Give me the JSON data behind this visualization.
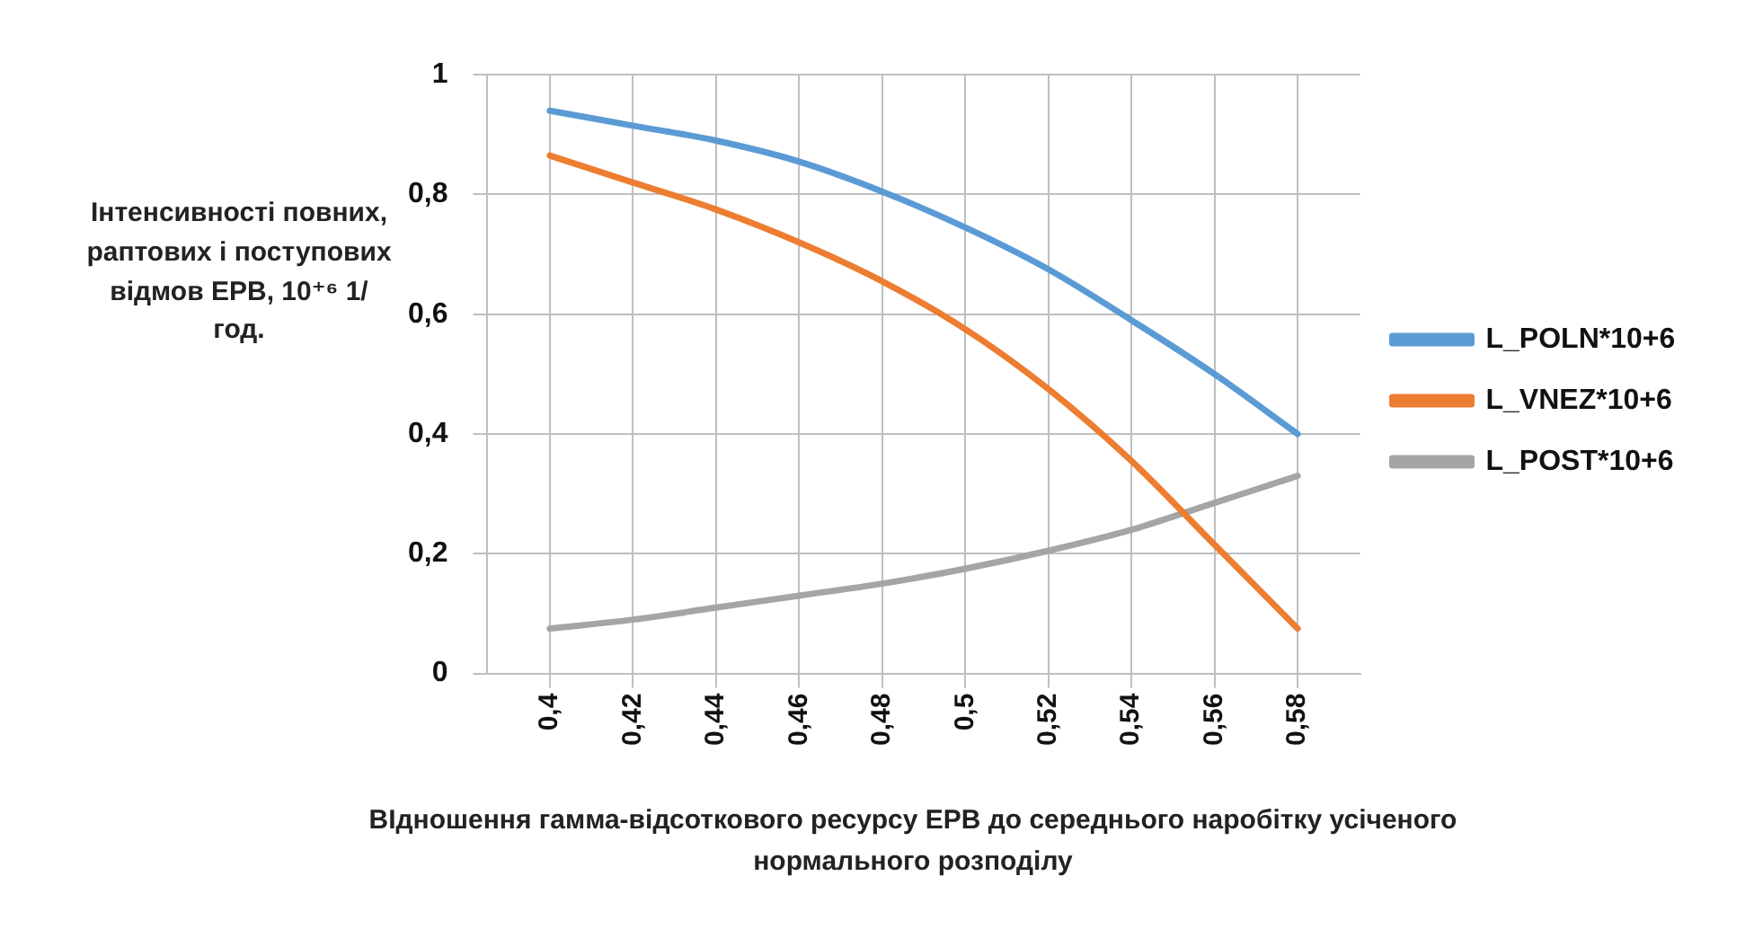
{
  "chart_data": {
    "type": "line",
    "xlabel": "ВІдношення гамма-відсоткового  ресурсу ЕРВ до середнього наробітку усіченого нормального розподілу",
    "ylabel": "Інтенсивності повних, раптових і поступових відмов ЕРВ, 10⁺⁶ 1/год.",
    "x": [
      0.4,
      0.42,
      0.44,
      0.46,
      0.48,
      0.5,
      0.52,
      0.54,
      0.56,
      0.58
    ],
    "series": [
      {
        "name": "L_POLN*10+6",
        "color": "#5b9bd5",
        "values": [
          0.94,
          0.915,
          0.89,
          0.855,
          0.805,
          0.745,
          0.675,
          0.59,
          0.5,
          0.4
        ]
      },
      {
        "name": "L_VNEZ*10+6",
        "color": "#ed7d31",
        "values": [
          0.865,
          0.82,
          0.775,
          0.72,
          0.655,
          0.575,
          0.475,
          0.355,
          0.215,
          0.075
        ]
      },
      {
        "name": "L_POST*10+6",
        "color": "#a5a5a5",
        "values": [
          0.075,
          0.09,
          0.11,
          0.13,
          0.15,
          0.175,
          0.205,
          0.24,
          0.285,
          0.33
        ]
      }
    ],
    "xlim": [
      0.385,
      0.595
    ],
    "xticks": [
      {
        "value": 0.4,
        "label": "0,4"
      },
      {
        "value": 0.42,
        "label": "0,42"
      },
      {
        "value": 0.44,
        "label": "0,44"
      },
      {
        "value": 0.46,
        "label": "0,46"
      },
      {
        "value": 0.48,
        "label": "0,48"
      },
      {
        "value": 0.5,
        "label": "0,5"
      },
      {
        "value": 0.52,
        "label": "0,52"
      },
      {
        "value": 0.54,
        "label": "0,54"
      },
      {
        "value": 0.56,
        "label": "0,56"
      },
      {
        "value": 0.58,
        "label": "0,58"
      }
    ],
    "ylim": [
      0,
      1
    ],
    "yticks": [
      0,
      {
        "value": 0.2,
        "label": "0,2"
      },
      {
        "value": 0.4,
        "label": "0,4"
      },
      {
        "value": 0.6,
        "label": "0,6"
      },
      {
        "value": 0.8,
        "label": "0,8"
      },
      1
    ],
    "grid": true,
    "legend": "right",
    "marker": "none",
    "line_style": "solid"
  }
}
